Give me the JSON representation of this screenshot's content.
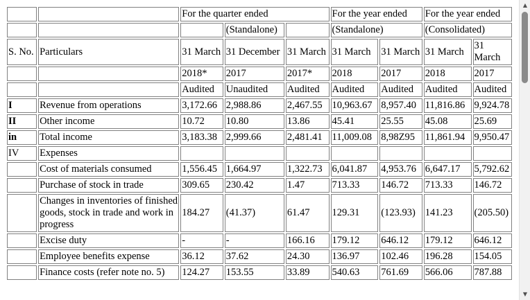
{
  "header": {
    "quarter_ended": "For the quarter ended",
    "year_ended_1": "For the year ended",
    "year_ended_2": "For the year ended",
    "standalone_paren": "(Standalone)",
    "standalone_year": "(Standalone)",
    "consolidated_year": "(Consolidated)",
    "sno": "S. No.",
    "particulars": "Particulars",
    "dates": [
      "31 March",
      "31 December",
      "31 March",
      "31 March",
      "31 March",
      "31 March",
      "31 March"
    ],
    "years": [
      "2018*",
      "2017",
      "2017*",
      "2018",
      "2017",
      "2018",
      "2017"
    ],
    "audit": [
      "Audited",
      "Unaudited",
      "Audited",
      "Audited",
      "Audited",
      "Audited",
      "Audited"
    ]
  },
  "rows": [
    {
      "sno": "I",
      "label": "Revenue from operations",
      "values": [
        "3,172.66",
        "2,988.86",
        "2,467.55",
        "10,963.67",
        "8,957.40",
        "11,816.86",
        "9,924.78"
      ]
    },
    {
      "sno": "II",
      "label": "Other income",
      "values": [
        "10.72",
        "10.80",
        "13.86",
        "45.41",
        "25.55",
        "45.08",
        "25.69"
      ]
    },
    {
      "sno": "in",
      "label": "Total income",
      "values": [
        "3,183.38",
        "2,999.66",
        "2,481.41",
        "11,009.08",
        "8,98Z95",
        "11,861.94",
        "9,950.47"
      ]
    },
    {
      "sno": "IV",
      "label": "Expenses",
      "values": [
        "",
        "",
        "",
        "",
        "",
        "",
        ""
      ]
    },
    {
      "sno": "",
      "label": "Cost of materials consumed",
      "values": [
        "1,556.45",
        "1,664.97",
        "1,322.73",
        "6,041.87",
        "4,953.76",
        "6,647.17",
        "5,792.62"
      ]
    },
    {
      "sno": "",
      "label": "Purchase of stock in trade",
      "values": [
        "309.65",
        "230.42",
        "1.47",
        "713.33",
        "146.72",
        "713.33",
        "146.72"
      ]
    },
    {
      "sno": "",
      "label": "Changes in inventories of finished goods, stock in trade and work in progress",
      "values": [
        "184.27",
        "(41.37)",
        "61.47",
        "129.31",
        "(123.93)",
        "141.23",
        "(205.50)"
      ]
    },
    {
      "sno": "",
      "label": "Excise duty",
      "values": [
        "-",
        "-",
        "166.16",
        "179.12",
        "646.12",
        "179.12",
        "646.12"
      ]
    },
    {
      "sno": "",
      "label": "Employee benefits expense",
      "values": [
        "36.12",
        "37.62",
        "24.30",
        "136.97",
        "102.46",
        "196.28",
        "154.05"
      ]
    },
    {
      "sno": "",
      "label": "Finance costs (refer note no. 5)",
      "values": [
        "124.27",
        "153.55",
        "33.89",
        "540.63",
        "761.69",
        "566.06",
        "787.88"
      ]
    }
  ]
}
